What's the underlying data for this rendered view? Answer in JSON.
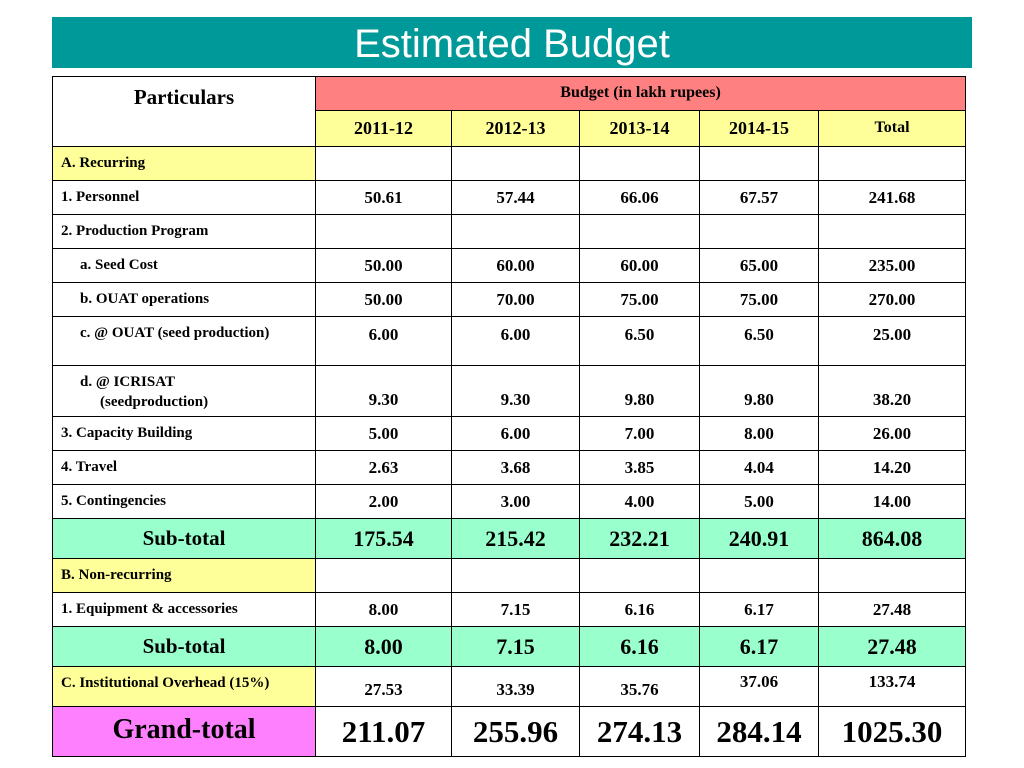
{
  "title": "Estimated Budget",
  "header": {
    "particulars": "Particulars",
    "budget": "Budget (in lakh rupees)",
    "years": [
      "2011-12",
      "2012-13",
      "2013-14",
      "2014-15"
    ],
    "total": "Total"
  },
  "sections": {
    "recurring": "A. Recurring",
    "non_recurring": "B. Non-recurring"
  },
  "rows": {
    "personnel": {
      "label": "1. Personnel",
      "values": [
        "50.61",
        "57.44",
        "66.06",
        "67.57",
        "241.68"
      ]
    },
    "production_program": {
      "label": "2. Production Program"
    },
    "seed_cost": {
      "label": "a. Seed Cost",
      "values": [
        "50.00",
        "60.00",
        "60.00",
        "65.00",
        "235.00"
      ]
    },
    "ouat_operations": {
      "label": "b. OUAT operations",
      "values": [
        "50.00",
        "70.00",
        "75.00",
        "75.00",
        "270.00"
      ]
    },
    "ouat_seed": {
      "label": "c. @ OUAT (seed production)",
      "values": [
        "6.00",
        "6.00",
        "6.50",
        "6.50",
        "25.00"
      ]
    },
    "icrisat": {
      "label_line1": "d. @ ICRISAT",
      "label_line2": "(seedproduction)",
      "values": [
        "9.30",
        "9.30",
        "9.80",
        "9.80",
        "38.20"
      ]
    },
    "capacity": {
      "label": "3. Capacity Building",
      "values": [
        "5.00",
        "6.00",
        "7.00",
        "8.00",
        "26.00"
      ]
    },
    "travel": {
      "label": "4. Travel",
      "values": [
        "2.63",
        "3.68",
        "3.85",
        "4.04",
        "14.20"
      ]
    },
    "contingencies": {
      "label": "5. Contingencies",
      "values": [
        "2.00",
        "3.00",
        "4.00",
        "5.00",
        "14.00"
      ]
    },
    "subtotal_a": {
      "label": "Sub-total",
      "values": [
        "175.54",
        "215.42",
        "232.21",
        "240.91",
        "864.08"
      ]
    },
    "equipment": {
      "label": "1. Equipment & accessories",
      "values": [
        "8.00",
        "7.15",
        "6.16",
        "6.17",
        "27.48"
      ]
    },
    "subtotal_b": {
      "label": "Sub-total",
      "values": [
        "8.00",
        "7.15",
        "6.16",
        "6.17",
        "27.48"
      ]
    },
    "overhead": {
      "label": "C. Institutional Overhead (15%)",
      "values": [
        "27.53",
        "33.39",
        "35.76",
        "37.06",
        "133.74"
      ]
    },
    "grand_total": {
      "label": "Grand-total",
      "values": [
        "211.07",
        "255.96",
        "274.13",
        "284.14",
        "1025.30"
      ]
    }
  }
}
